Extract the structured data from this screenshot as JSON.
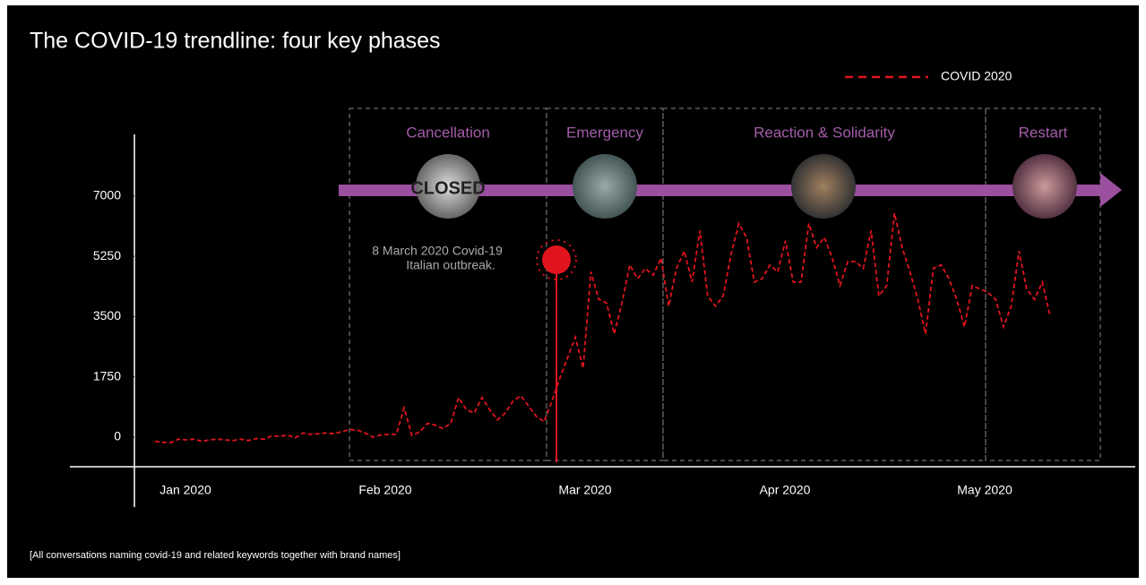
{
  "chart_data": {
    "type": "line",
    "title": "The COVID-19 trendline: four key phases",
    "series": [
      {
        "name": "COVID 2020",
        "color": "#e0141e",
        "values": [
          -120,
          -150,
          -160,
          -60,
          -80,
          -60,
          -120,
          -80,
          -60,
          -80,
          -100,
          -60,
          -100,
          -40,
          -60,
          40,
          20,
          60,
          -20,
          120,
          80,
          100,
          120,
          100,
          160,
          220,
          200,
          120,
          0,
          60,
          80,
          80,
          850,
          50,
          150,
          400,
          350,
          250,
          400,
          1150,
          800,
          700,
          1150,
          800,
          500,
          700,
          1050,
          1200,
          900,
          600,
          450,
          1050,
          1700,
          2300,
          2900,
          2000,
          4800,
          4000,
          3900,
          3000,
          3900,
          5000,
          4600,
          4900,
          4700,
          5200,
          3800,
          4900,
          5400,
          4500,
          6000,
          4100,
          3800,
          4100,
          5300,
          6200,
          5800,
          4500,
          4600,
          5000,
          4800,
          5700,
          4500,
          4500,
          6200,
          5500,
          5800,
          5200,
          4400,
          5100,
          5100,
          4900,
          6000,
          4100,
          4400,
          6500,
          5500,
          4800,
          4000,
          3000,
          4900,
          5000,
          4600,
          4000,
          3200,
          4400,
          4300,
          4200,
          4000,
          3200,
          3800,
          5400,
          4300,
          4000,
          4500,
          3500
        ]
      }
    ],
    "xlabels": [
      "Jan 2020",
      "Feb 2020",
      "Mar 2020",
      "Apr 2020",
      "May 2020"
    ],
    "ylim": [
      -860,
      8790
    ],
    "yticks": [
      0,
      1750,
      3500,
      5250,
      7000
    ],
    "phases": [
      "Cancellation",
      "Emergency",
      "Reaction & Solidarity",
      "Restart"
    ],
    "image_text": "CLOSED",
    "annotation": [
      "8 March 2020 Covid-19",
      "Italian outbreak."
    ],
    "footnote": "[All conversations naming covid-19 and related keywords together with brand names]"
  }
}
